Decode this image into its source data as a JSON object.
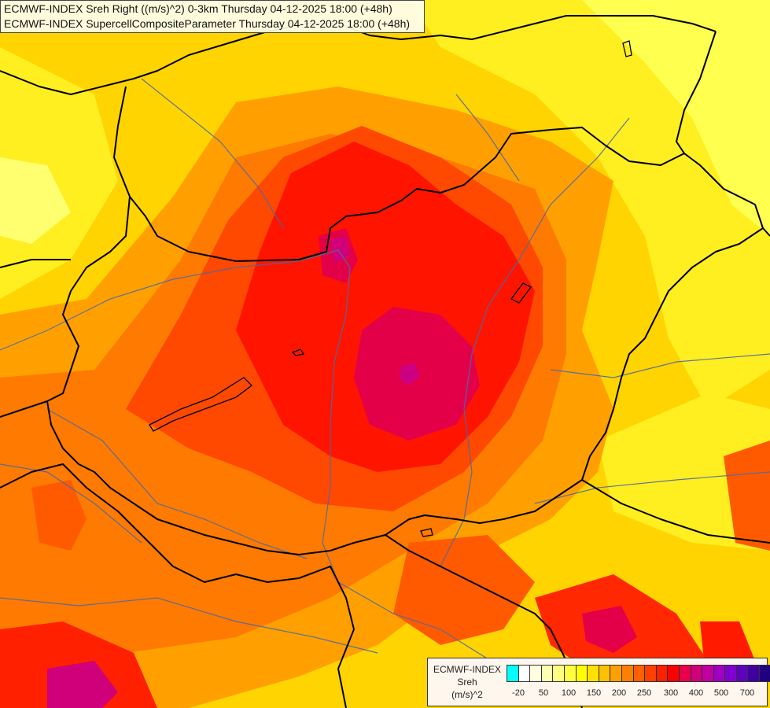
{
  "header": {
    "line1": "ECMWF-INDEX Sreh Right ((m/s)^2) 0-3km Thursday 04-12-2025 18:00 (+48h)",
    "line2": "ECMWF-INDEX SupercellCompositeParameter Thursday 04-12-2025 18:00 (+48h)"
  },
  "legend": {
    "line1": "ECMWF-INDEX",
    "line2": "Sreh",
    "line3": "(m/s)^2",
    "colors": [
      "#00ffff",
      "#ffffff",
      "#ffffe0",
      "#ffffb0",
      "#ffff80",
      "#ffff40",
      "#ffff00",
      "#ffe000",
      "#ffc000",
      "#ffa000",
      "#ff8000",
      "#ff6000",
      "#ff4000",
      "#ff2000",
      "#ff0000",
      "#e8004a",
      "#d0007a",
      "#c000a0",
      "#a000c0",
      "#8000d0",
      "#6000c0",
      "#4000a0",
      "#200080"
    ],
    "ticks": [
      "-20",
      "50",
      "100",
      "150",
      "200",
      "250",
      "300",
      "400",
      "500",
      "700"
    ]
  },
  "map": {
    "borders_color": "#000000",
    "rivers_color": "#4a6aa8",
    "fill_colors": {
      "yellow": "#ffe100",
      "light_yellow": "#ffff60",
      "orange_light": "#ffbb00",
      "orange": "#ff9900",
      "orange_dark": "#ff6a00",
      "red_orange": "#ff4a00",
      "red": "#ff1a00",
      "crimson": "#e8004a",
      "magenta": "#d0007a"
    }
  }
}
